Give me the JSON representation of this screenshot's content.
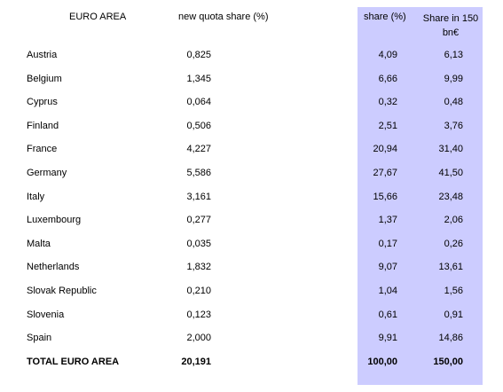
{
  "headers": {
    "area": "EURO AREA",
    "quota": "new quota share (%)",
    "share": "share (%)",
    "share150_line1": "Share in 150",
    "share150_line2": "bn€"
  },
  "rows": [
    {
      "country": "Austria",
      "quota": "0,825",
      "share": "4,09",
      "share150": "6,13"
    },
    {
      "country": "Belgium",
      "quota": "1,345",
      "share": "6,66",
      "share150": "9,99"
    },
    {
      "country": "Cyprus",
      "quota": "0,064",
      "share": "0,32",
      "share150": "0,48"
    },
    {
      "country": "Finland",
      "quota": "0,506",
      "share": "2,51",
      "share150": "3,76"
    },
    {
      "country": "France",
      "quota": "4,227",
      "share": "20,94",
      "share150": "31,40"
    },
    {
      "country": "Germany",
      "quota": "5,586",
      "share": "27,67",
      "share150": "41,50"
    },
    {
      "country": "Italy",
      "quota": "3,161",
      "share": "15,66",
      "share150": "23,48"
    },
    {
      "country": "Luxembourg",
      "quota": "0,277",
      "share": "1,37",
      "share150": "2,06"
    },
    {
      "country": "Malta",
      "quota": "0,035",
      "share": "0,17",
      "share150": "0,26"
    },
    {
      "country": "Netherlands",
      "quota": "1,832",
      "share": "9,07",
      "share150": "13,61"
    },
    {
      "country": "Slovak Republic",
      "quota": "0,210",
      "share": "1,04",
      "share150": "1,56"
    },
    {
      "country": "Slovenia",
      "quota": "0,123",
      "share": "0,61",
      "share150": "0,91"
    },
    {
      "country": "Spain",
      "quota": "2,000",
      "share": "9,91",
      "share150": "14,86"
    }
  ],
  "total": {
    "country": "TOTAL EURO AREA",
    "quota": "20,191",
    "share": "100,00",
    "share150": "150,00"
  },
  "colors": {
    "highlight": "#ccccff"
  }
}
